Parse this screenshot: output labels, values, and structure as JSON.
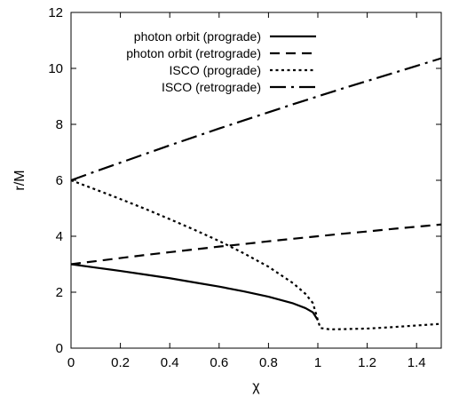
{
  "chart_data": {
    "type": "line",
    "title": "",
    "xlabel": "χ",
    "ylabel": "r/M",
    "xlim": [
      0,
      1.5
    ],
    "ylim": [
      0,
      12
    ],
    "xticks": [
      "0",
      "0.2",
      "0.4",
      "0.6",
      "0.8",
      "1",
      "1.2",
      "1.4"
    ],
    "yticks": [
      "0",
      "2",
      "4",
      "6",
      "8",
      "10",
      "12"
    ],
    "grid": false,
    "legend_position": "top-left",
    "series": [
      {
        "name": "photon orbit (prograde)",
        "style": "solid",
        "color": "#000000",
        "x": [
          0,
          0.1,
          0.2,
          0.3,
          0.4,
          0.5,
          0.6,
          0.7,
          0.8,
          0.9,
          0.95,
          0.98,
          1.0
        ],
        "y": [
          3.0,
          2.88,
          2.76,
          2.63,
          2.5,
          2.35,
          2.2,
          2.03,
          1.84,
          1.6,
          1.43,
          1.28,
          1.0
        ]
      },
      {
        "name": "photon orbit (retrograde)",
        "style": "dashed",
        "color": "#000000",
        "x": [
          0,
          0.1,
          0.2,
          0.3,
          0.4,
          0.5,
          0.6,
          0.7,
          0.8,
          0.9,
          1.0,
          1.1,
          1.2,
          1.3,
          1.4,
          1.5
        ],
        "y": [
          3.0,
          3.11,
          3.22,
          3.33,
          3.43,
          3.53,
          3.63,
          3.72,
          3.82,
          3.91,
          4.0,
          4.09,
          4.17,
          4.26,
          4.34,
          4.42
        ]
      },
      {
        "name": "ISCO (prograde)",
        "style": "dotted",
        "color": "#000000",
        "x": [
          0,
          0.1,
          0.2,
          0.3,
          0.4,
          0.5,
          0.6,
          0.7,
          0.8,
          0.9,
          0.95,
          0.98,
          1.0,
          1.01,
          1.05,
          1.1,
          1.2,
          1.3,
          1.4,
          1.5
        ],
        "y": [
          6.0,
          5.67,
          5.33,
          4.98,
          4.61,
          4.23,
          3.83,
          3.39,
          2.91,
          2.32,
          1.94,
          1.61,
          1.0,
          0.72,
          0.67,
          0.68,
          0.7,
          0.75,
          0.81,
          0.87
        ]
      },
      {
        "name": "ISCO (retrograde)",
        "style": "dash-dot",
        "color": "#000000",
        "x": [
          0,
          0.1,
          0.2,
          0.3,
          0.4,
          0.5,
          0.6,
          0.7,
          0.8,
          0.9,
          1.0,
          1.1,
          1.2,
          1.3,
          1.4,
          1.5
        ],
        "y": [
          6.0,
          6.32,
          6.63,
          6.94,
          7.25,
          7.55,
          7.85,
          8.14,
          8.43,
          8.72,
          9.0,
          9.28,
          9.55,
          9.82,
          10.09,
          10.36
        ]
      }
    ]
  }
}
